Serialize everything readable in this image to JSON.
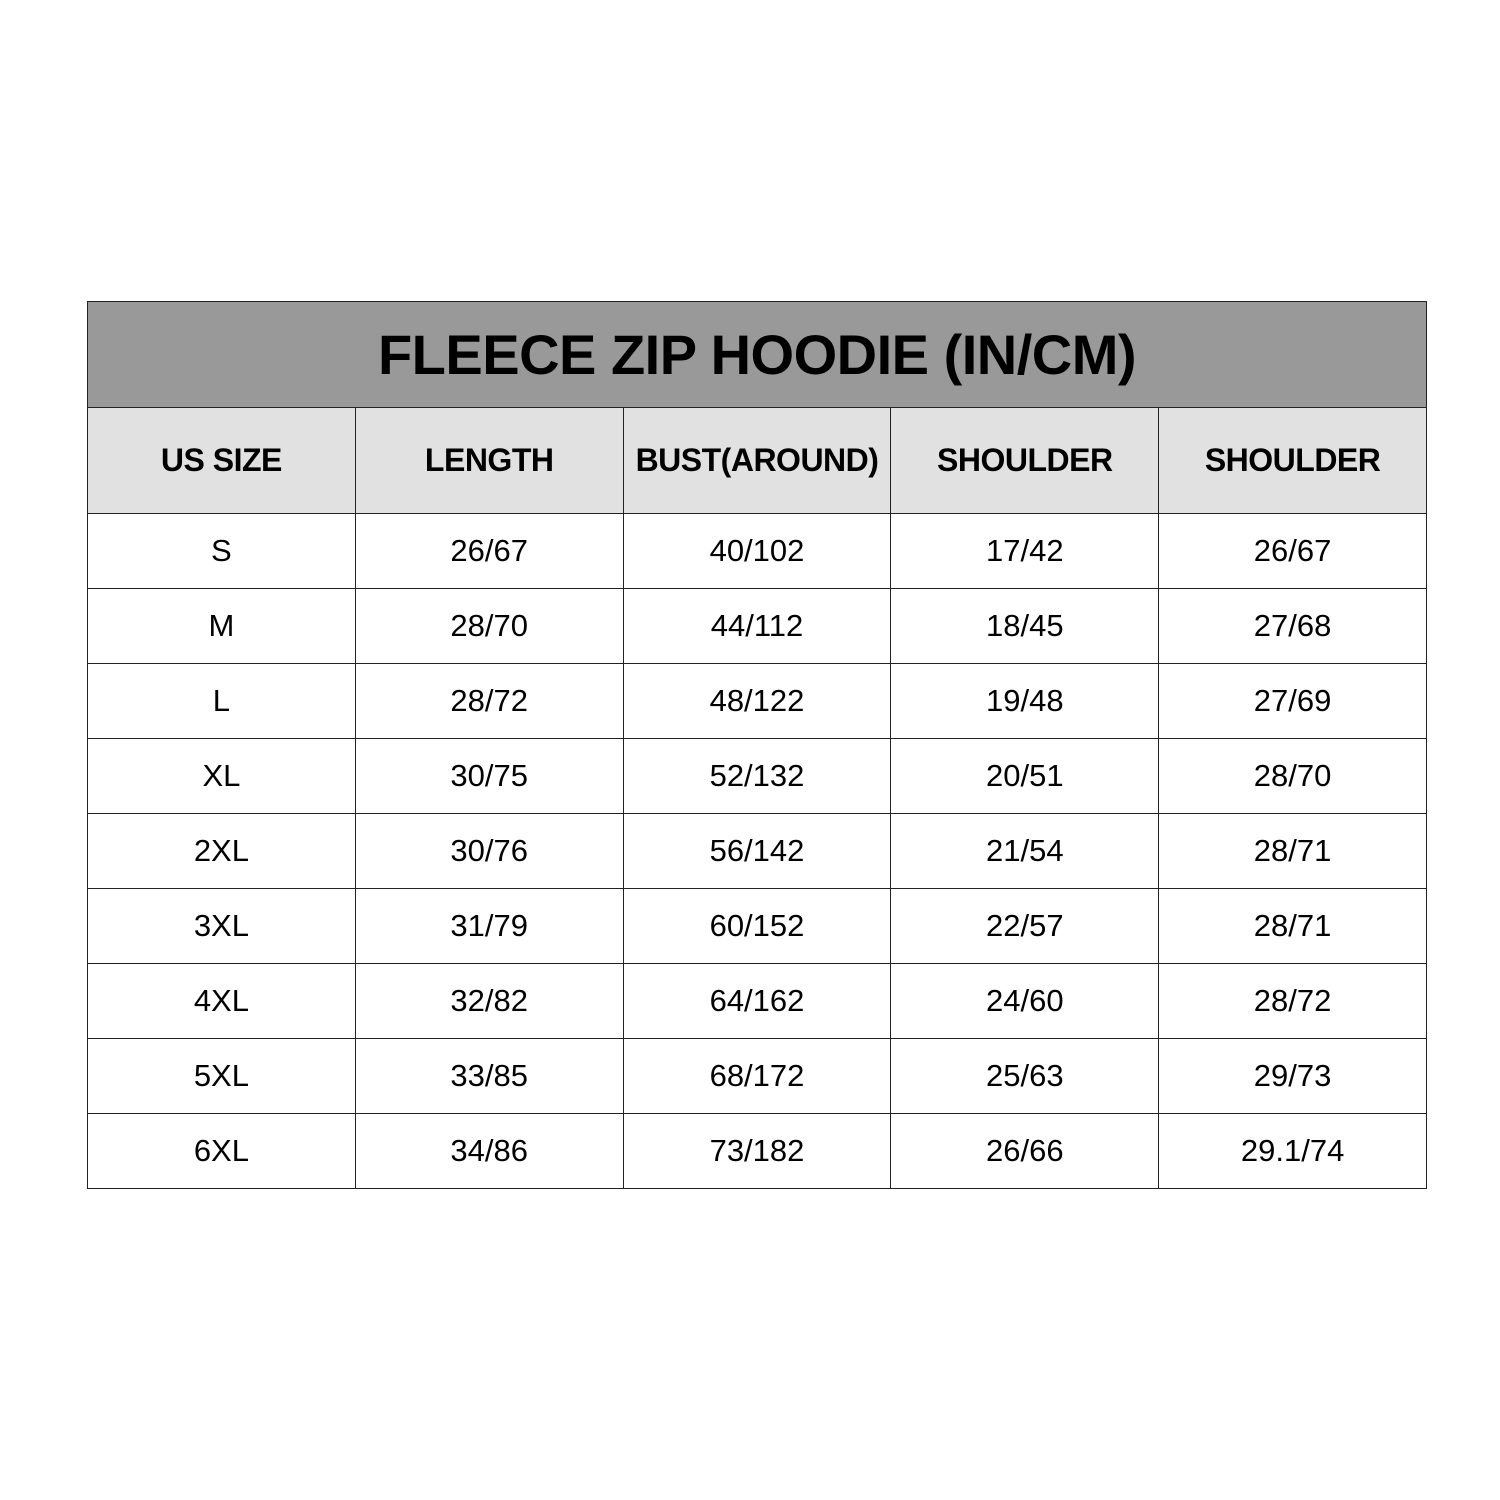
{
  "title": "FLEECE ZIP HOODIE (IN/CM)",
  "colors": {
    "title_bg": "#999999",
    "header_bg": "#e1e1e1",
    "border": "#222222"
  },
  "columns": [
    "US SIZE",
    "LENGTH",
    "BUST(AROUND)",
    "SHOULDER",
    "SHOULDER"
  ],
  "rows": [
    [
      "S",
      "26/67",
      "40/102",
      "17/42",
      "26/67"
    ],
    [
      "M",
      "28/70",
      "44/112",
      "18/45",
      "27/68"
    ],
    [
      "L",
      "28/72",
      "48/122",
      "19/48",
      "27/69"
    ],
    [
      "XL",
      "30/75",
      "52/132",
      "20/51",
      "28/70"
    ],
    [
      "2XL",
      "30/76",
      "56/142",
      "21/54",
      "28/71"
    ],
    [
      "3XL",
      "31/79",
      "60/152",
      "22/57",
      "28/71"
    ],
    [
      "4XL",
      "32/82",
      "64/162",
      "24/60",
      "28/72"
    ],
    [
      "5XL",
      "33/85",
      "68/172",
      "25/63",
      "29/73"
    ],
    [
      "6XL",
      "34/86",
      "73/182",
      "26/66",
      "29.1/74"
    ]
  ]
}
